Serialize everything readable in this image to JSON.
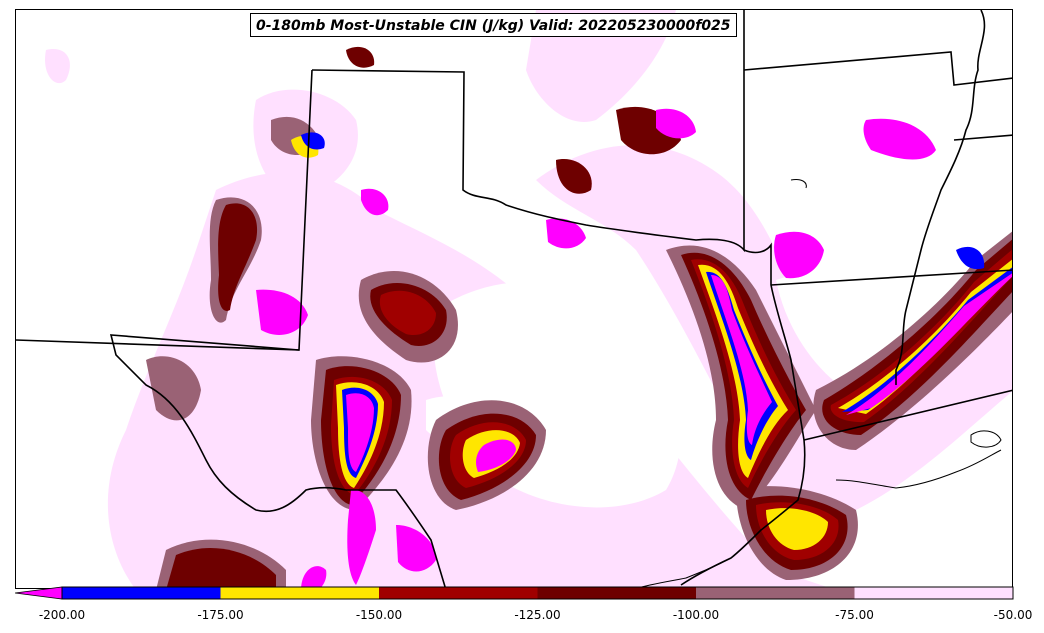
{
  "title": "0-180mb Most-Unstable CIN (J/kg) Valid: 202205230000f025",
  "colorbar": {
    "ticks": [
      "-200.00",
      "-175.00",
      "-150.00",
      "-125.00",
      "-100.00",
      "-75.00",
      "-50.00"
    ],
    "bins": [
      {
        "from": -200,
        "to": -175,
        "color": "#0000ff"
      },
      {
        "from": -175,
        "to": -150,
        "color": "#ffe600"
      },
      {
        "from": -150,
        "to": -125,
        "color": "#a00000"
      },
      {
        "from": -125,
        "to": -100,
        "color": "#6e0000"
      },
      {
        "from": -100,
        "to": -75,
        "color": "#9a6275"
      },
      {
        "from": -75,
        "to": -50,
        "color": "#ffe0ff"
      }
    ],
    "underflow_color": "#ff00ff"
  }
}
